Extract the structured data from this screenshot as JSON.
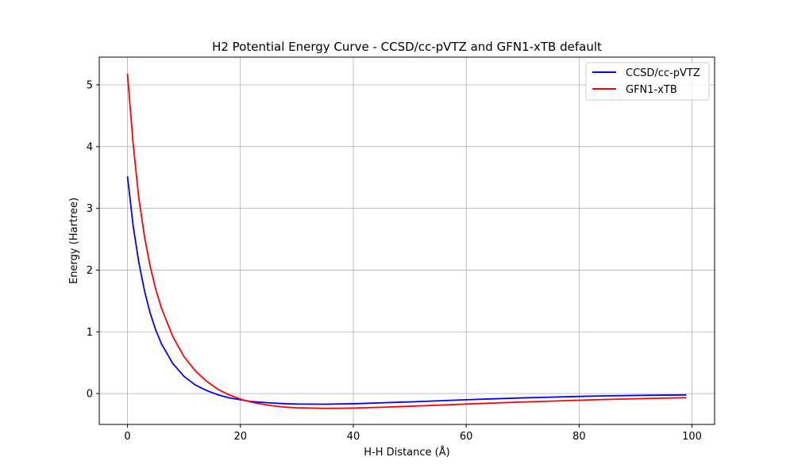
{
  "chart_data": {
    "type": "line",
    "title": "H2 Potential Energy Curve - CCSD/cc-pVTZ and GFN1-xTB default",
    "xlabel": "H-H Distance (Å)",
    "ylabel": "Energy (Hartree)",
    "xlim": [
      -5,
      104
    ],
    "ylim": [
      -0.5,
      5.45
    ],
    "xticks": [
      0,
      20,
      40,
      60,
      80,
      100
    ],
    "yticks": [
      0,
      1,
      2,
      3,
      4,
      5
    ],
    "grid": true,
    "legend_position": "top-right",
    "series": [
      {
        "name": "CCSD/cc-pVTZ",
        "color": "#0000ff",
        "x": [
          0,
          1,
          2,
          3,
          4,
          5,
          6,
          8,
          10,
          12,
          14,
          16,
          18,
          20,
          22,
          25,
          28,
          30,
          35,
          40,
          45,
          50,
          55,
          60,
          65,
          70,
          75,
          80,
          85,
          90,
          95,
          99
        ],
        "y": [
          3.52,
          2.72,
          2.13,
          1.67,
          1.31,
          1.03,
          0.81,
          0.49,
          0.28,
          0.14,
          0.05,
          -0.02,
          -0.07,
          -0.1,
          -0.13,
          -0.15,
          -0.165,
          -0.17,
          -0.172,
          -0.165,
          -0.15,
          -0.135,
          -0.118,
          -0.1,
          -0.085,
          -0.07,
          -0.058,
          -0.046,
          -0.037,
          -0.03,
          -0.025,
          -0.022
        ]
      },
      {
        "name": "GFN1-xTB",
        "color": "#ff0000",
        "x": [
          0,
          1,
          2,
          3,
          4,
          5,
          6,
          8,
          10,
          12,
          14,
          16,
          18,
          20,
          22,
          25,
          28,
          30,
          35,
          40,
          45,
          50,
          55,
          60,
          65,
          70,
          75,
          80,
          85,
          90,
          95,
          99
        ],
        "y": [
          5.18,
          4.05,
          3.17,
          2.55,
          2.07,
          1.69,
          1.39,
          0.93,
          0.6,
          0.37,
          0.2,
          0.07,
          -0.02,
          -0.09,
          -0.14,
          -0.19,
          -0.22,
          -0.23,
          -0.24,
          -0.235,
          -0.222,
          -0.205,
          -0.188,
          -0.17,
          -0.153,
          -0.137,
          -0.122,
          -0.108,
          -0.095,
          -0.084,
          -0.074,
          -0.067
        ]
      }
    ]
  }
}
